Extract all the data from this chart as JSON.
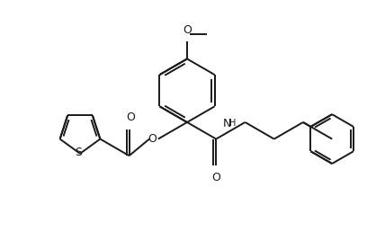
{
  "background_color": "#ffffff",
  "line_color": "#1a1a1a",
  "line_width": 1.4,
  "figsize": [
    4.18,
    2.68
  ],
  "dpi": 100,
  "xlim": [
    0,
    418
  ],
  "ylim": [
    0,
    268
  ]
}
